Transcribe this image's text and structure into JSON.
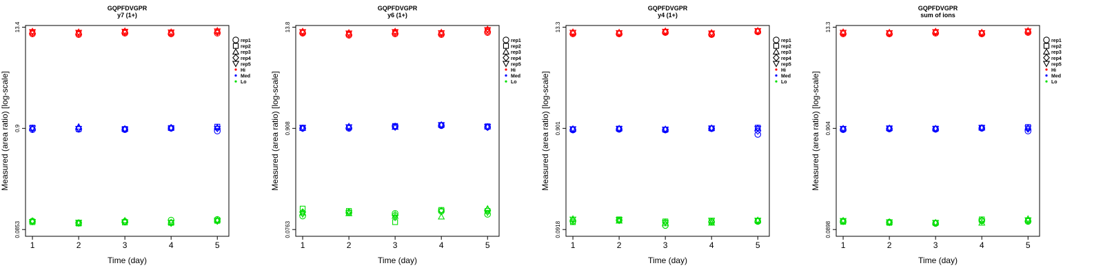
{
  "chart_data": [
    {
      "type": "scatter",
      "title": "GQPFDVGPR",
      "subtitle": "y7 (1+)",
      "xlabel": "Time (day)",
      "ylabel": "Measured (area ratio) [log-scale]",
      "x": [
        1,
        2,
        3,
        4,
        5
      ],
      "yticks": [
        "0.0853",
        "0.9",
        "13.4"
      ],
      "ylim": [
        -0.2,
        6.05
      ],
      "legend": [
        "rep1",
        "rep2",
        "rep3",
        "rep4",
        "rep5",
        "Hi",
        "Med",
        "Lo"
      ],
      "series": [
        {
          "name": "Hi",
          "color": "#ff0000",
          "values": [
            [
              5.8,
              5.78,
              5.82,
              5.8,
              5.82
            ],
            [
              5.84,
              5.82,
              5.85,
              5.83,
              5.87
            ],
            [
              5.88,
              5.86,
              5.89,
              5.86,
              5.9
            ],
            [
              5.82,
              5.8,
              5.84,
              5.81,
              5.85
            ],
            [
              5.86,
              5.84,
              5.87,
              5.85,
              5.88
            ]
          ]
        },
        {
          "name": "Med",
          "color": "#0000ff",
          "values": [
            [
              2.96,
              2.97,
              2.96,
              3.0,
              2.92
            ],
            [
              3.02,
              2.98,
              2.98,
              3.01,
              3.05
            ],
            [
              3.01,
              3.05,
              2.99,
              3.02,
              3.03
            ],
            [
              2.98,
              3.0,
              2.98,
              3.02,
              3.0
            ],
            [
              3.0,
              2.99,
              2.97,
              3.0,
              2.99
            ]
          ]
        },
        {
          "name": "Lo",
          "color": "#00dd00",
          "values": [
            [
              0.25,
              0.2,
              0.24,
              0.28,
              0.3
            ],
            [
              0.22,
              0.18,
              0.21,
              0.2,
              0.26
            ],
            [
              0.26,
              0.2,
              0.27,
              0.22,
              0.29
            ],
            [
              0.24,
              0.19,
              0.23,
              0.19,
              0.25
            ],
            [
              0.23,
              0.21,
              0.22,
              0.21,
              0.27
            ]
          ]
        }
      ]
    },
    {
      "type": "scatter",
      "title": "GQPFDVGPR",
      "subtitle": "y6 (1+)",
      "xlabel": "Time (day)",
      "ylabel": "Measured (area ratio) [log-scale]",
      "x": [
        1,
        2,
        3,
        4,
        5
      ],
      "yticks": [
        "0.0763",
        "0.908",
        "13.8"
      ],
      "ylim": [
        -0.2,
        6.05
      ],
      "legend": [
        "rep1",
        "rep2",
        "rep3",
        "rep4",
        "rep5",
        "Hi",
        "Med",
        "Lo"
      ],
      "series": [
        {
          "name": "Hi",
          "color": "#ff0000",
          "values": [
            [
              5.82,
              5.76,
              5.8,
              5.78,
              5.84
            ],
            [
              5.85,
              5.8,
              5.84,
              5.82,
              5.9
            ],
            [
              5.88,
              5.84,
              5.88,
              5.85,
              5.94
            ],
            [
              5.83,
              5.78,
              5.82,
              5.8,
              5.86
            ],
            [
              5.86,
              5.82,
              5.86,
              5.83,
              5.92
            ]
          ]
        },
        {
          "name": "Med",
          "color": "#0000ff",
          "values": [
            [
              3.0,
              3.0,
              3.05,
              3.08,
              3.04
            ],
            [
              3.02,
              3.03,
              3.07,
              3.1,
              3.06
            ],
            [
              3.01,
              3.06,
              3.04,
              3.11,
              3.05
            ],
            [
              3.0,
              3.02,
              3.06,
              3.09,
              3.03
            ],
            [
              3.02,
              3.04,
              3.03,
              3.1,
              3.05
            ]
          ]
        },
        {
          "name": "Lo",
          "color": "#00dd00",
          "values": [
            [
              0.4,
              0.5,
              0.48,
              0.54,
              0.45
            ],
            [
              0.62,
              0.55,
              0.22,
              0.58,
              0.55
            ],
            [
              0.5,
              0.48,
              0.4,
              0.38,
              0.62
            ],
            [
              0.52,
              0.52,
              0.44,
              0.56,
              0.58
            ],
            [
              0.45,
              0.5,
              0.35,
              0.54,
              0.5
            ]
          ]
        }
      ]
    },
    {
      "type": "scatter",
      "title": "GQPFDVGPR",
      "subtitle": "y4 (1+)",
      "xlabel": "Time (day)",
      "ylabel": "Measured (area ratio) [log-scale]",
      "x": [
        1,
        2,
        3,
        4,
        5
      ],
      "yticks": [
        "0.0918",
        "0.901",
        "13.3"
      ],
      "ylim": [
        -0.2,
        6.05
      ],
      "legend": [
        "rep1",
        "rep2",
        "rep3",
        "rep4",
        "rep5",
        "Hi",
        "Med",
        "Lo"
      ],
      "series": [
        {
          "name": "Hi",
          "color": "#ff0000",
          "values": [
            [
              5.8,
              5.8,
              5.84,
              5.78,
              5.86
            ],
            [
              5.83,
              5.82,
              5.86,
              5.8,
              5.88
            ],
            [
              5.86,
              5.85,
              5.89,
              5.84,
              5.9
            ],
            [
              5.82,
              5.81,
              5.85,
              5.79,
              5.87
            ],
            [
              5.84,
              5.83,
              5.87,
              5.82,
              5.89
            ]
          ]
        },
        {
          "name": "Med",
          "color": "#0000ff",
          "values": [
            [
              2.95,
              2.97,
              2.95,
              2.99,
              2.82
            ],
            [
              2.97,
              2.99,
              2.96,
              3.0,
              3.02
            ],
            [
              2.99,
              3.0,
              2.98,
              3.01,
              3.01
            ],
            [
              2.96,
              2.98,
              2.96,
              3.0,
              2.92
            ],
            [
              2.98,
              2.99,
              2.97,
              3.0,
              2.99
            ]
          ]
        },
        {
          "name": "Lo",
          "color": "#00dd00",
          "values": [
            [
              0.25,
              0.28,
              0.12,
              0.22,
              0.24
            ],
            [
              0.22,
              0.3,
              0.24,
              0.26,
              0.26
            ],
            [
              0.32,
              0.26,
              0.18,
              0.2,
              0.28
            ],
            [
              0.28,
              0.27,
              0.22,
              0.24,
              0.25
            ],
            [
              0.3,
              0.29,
              0.2,
              0.27,
              0.27
            ]
          ]
        }
      ]
    },
    {
      "type": "scatter",
      "title": "GQPFDVGPR",
      "subtitle": "sum of ions",
      "xlabel": "Time (day)",
      "ylabel": "Measured (area ratio) [log-scale]",
      "x": [
        1,
        2,
        3,
        4,
        5
      ],
      "yticks": [
        "0.0898",
        "0.904",
        "13.3"
      ],
      "ylim": [
        -0.2,
        6.05
      ],
      "legend": [
        "rep1",
        "rep2",
        "rep3",
        "rep4",
        "rep5",
        "Hi",
        "Med",
        "Lo"
      ],
      "series": [
        {
          "name": "Hi",
          "color": "#ff0000",
          "values": [
            [
              5.8,
              5.8,
              5.82,
              5.8,
              5.84
            ],
            [
              5.83,
              5.82,
              5.85,
              5.82,
              5.87
            ],
            [
              5.86,
              5.85,
              5.88,
              5.85,
              5.9
            ],
            [
              5.82,
              5.81,
              5.84,
              5.81,
              5.86
            ],
            [
              5.84,
              5.83,
              5.86,
              5.83,
              5.88
            ]
          ]
        },
        {
          "name": "Med",
          "color": "#0000ff",
          "values": [
            [
              2.96,
              2.98,
              2.97,
              3.0,
              2.92
            ],
            [
              2.98,
              3.0,
              2.99,
              3.02,
              3.04
            ],
            [
              3.0,
              3.01,
              3.0,
              3.02,
              3.02
            ],
            [
              2.97,
              2.99,
              2.98,
              3.01,
              2.98
            ],
            [
              2.99,
              3.0,
              2.99,
              3.02,
              3.0
            ]
          ]
        },
        {
          "name": "Lo",
          "color": "#00dd00",
          "values": [
            [
              0.25,
              0.22,
              0.18,
              0.26,
              0.24
            ],
            [
              0.23,
              0.2,
              0.2,
              0.3,
              0.27
            ],
            [
              0.27,
              0.23,
              0.21,
              0.2,
              0.32
            ],
            [
              0.24,
              0.21,
              0.19,
              0.28,
              0.26
            ],
            [
              0.26,
              0.22,
              0.2,
              0.24,
              0.28
            ]
          ]
        }
      ]
    }
  ]
}
